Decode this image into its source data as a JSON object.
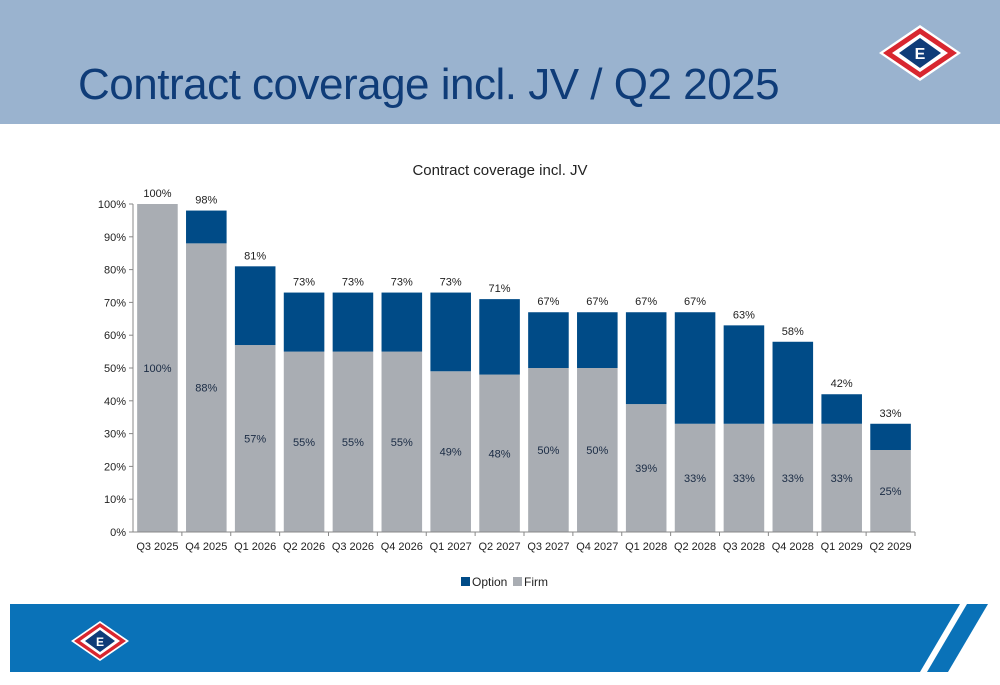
{
  "header": {
    "title": "Contract coverage incl. JV / Q2 2025"
  },
  "colors": {
    "header_bg": "#9ab3cf",
    "title": "#0f3c78",
    "option": "#004b87",
    "firm": "#a9adb3",
    "footer": "#0a72b8"
  },
  "icons": {
    "logo": "company-logo-icon"
  },
  "chart_data": {
    "type": "bar",
    "stacked": true,
    "title": "Contract coverage incl. JV",
    "categories": [
      "Q3 2025",
      "Q4 2025",
      "Q1 2026",
      "Q2 2026",
      "Q3 2026",
      "Q4 2026",
      "Q1 2027",
      "Q2 2027",
      "Q3 2027",
      "Q4 2027",
      "Q1 2028",
      "Q2 2028",
      "Q3 2028",
      "Q4 2028",
      "Q1 2029",
      "Q2 2029"
    ],
    "series": [
      {
        "name": "Firm",
        "values": [
          100,
          88,
          57,
          55,
          55,
          55,
          49,
          48,
          50,
          50,
          39,
          33,
          33,
          33,
          33,
          25
        ],
        "labels": [
          "100%",
          "88%",
          "57%",
          "55%",
          "55%",
          "55%",
          "49%",
          "48%",
          "50%",
          "50%",
          "39%",
          "33%",
          "33%",
          "33%",
          "33%",
          "25%"
        ]
      },
      {
        "name": "Option",
        "values": [
          0,
          10,
          24,
          18,
          18,
          18,
          24,
          23,
          17,
          17,
          28,
          34,
          30,
          25,
          9,
          8
        ]
      }
    ],
    "totals": [
      100,
      98,
      81,
      73,
      73,
      73,
      73,
      71,
      67,
      67,
      67,
      67,
      63,
      58,
      42,
      33
    ],
    "total_labels": [
      "100%",
      "98%",
      "81%",
      "73%",
      "73%",
      "73%",
      "73%",
      "71%",
      "67%",
      "67%",
      "67%",
      "67%",
      "63%",
      "58%",
      "42%",
      "33%"
    ],
    "yticks": [
      "0%",
      "10%",
      "20%",
      "30%",
      "40%",
      "50%",
      "60%",
      "70%",
      "80%",
      "90%",
      "100%"
    ],
    "ylim": [
      0,
      100
    ],
    "xlabel": "",
    "ylabel": "",
    "legend": [
      "Option",
      "Firm"
    ],
    "legend_position": "bottom",
    "grid": false
  }
}
